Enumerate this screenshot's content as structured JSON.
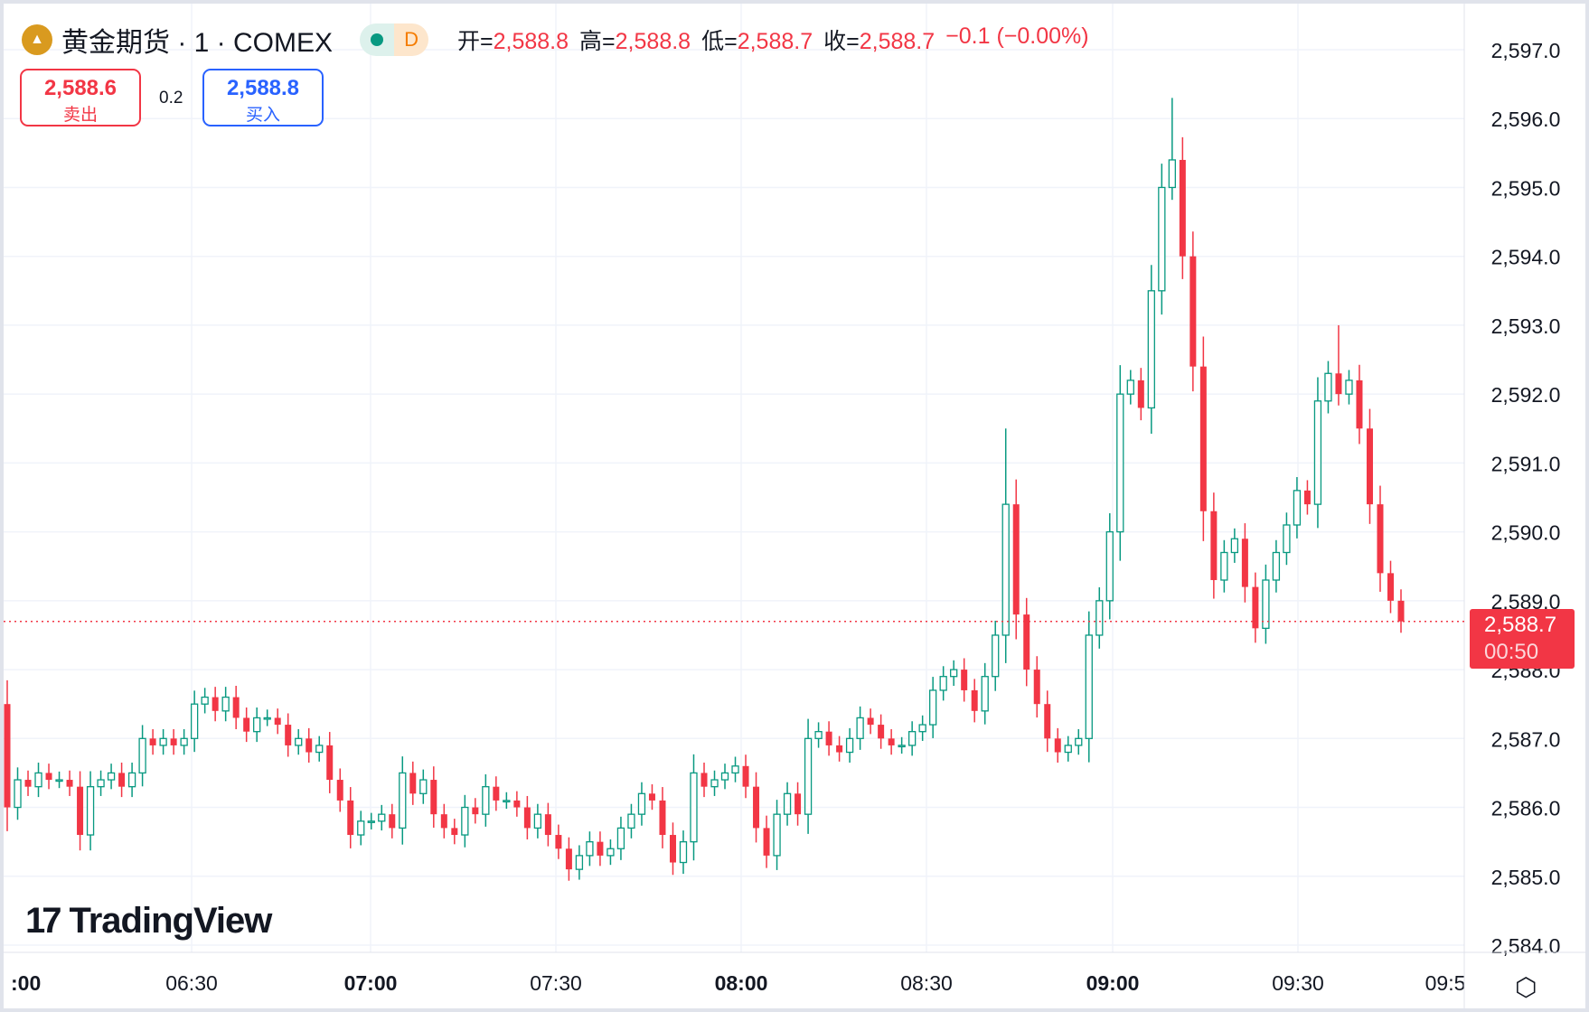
{
  "header": {
    "title": "黄金期货 · 1 · COMEX",
    "logo_icon": "gold-bars-icon",
    "status_dot_color": "#089981",
    "interval_badge": "D",
    "ohlc": [
      {
        "label": "开=",
        "value": "2,588.8"
      },
      {
        "label": "高=",
        "value": "2,588.8"
      },
      {
        "label": "低=",
        "value": "2,588.7"
      },
      {
        "label": "收=",
        "value": "2,588.7"
      }
    ],
    "change": "−0.1 (−0.00%)"
  },
  "trade": {
    "sell_price": "2,588.6",
    "sell_label": "卖出",
    "spread": "0.2",
    "buy_price": "2,588.8",
    "buy_label": "买入"
  },
  "last_price": {
    "value": "2,588.7",
    "countdown": "00:50"
  },
  "branding": "TradingView",
  "colors": {
    "up": "#089981",
    "down": "#f23645",
    "buy": "#2962ff"
  },
  "chart_data": {
    "type": "candlestick",
    "price_ticks": [
      "2,597.0",
      "2,596.0",
      "2,595.0",
      "2,594.0",
      "2,593.0",
      "2,592.0",
      "2,591.0",
      "2,590.0",
      "2,589.0",
      "2,588.0",
      "2,587.0",
      "2,586.0",
      "2,585.0",
      "2,584.0"
    ],
    "ylim": [
      2584.0,
      2597.0
    ],
    "time_ticks": [
      {
        "label": ":00",
        "bold": true
      },
      {
        "label": "06:30",
        "bold": false
      },
      {
        "label": "07:00",
        "bold": true
      },
      {
        "label": "07:30",
        "bold": false
      },
      {
        "label": "08:00",
        "bold": true
      },
      {
        "label": "08:30",
        "bold": false
      },
      {
        "label": "09:00",
        "bold": true
      },
      {
        "label": "09:30",
        "bold": false
      },
      {
        "label": "09:5",
        "bold": false
      }
    ],
    "first_open": 2587.5,
    "closes": [
      2586.0,
      2586.4,
      2586.3,
      2586.5,
      2586.4,
      2586.4,
      2586.3,
      2585.6,
      2586.3,
      2586.4,
      2586.5,
      2586.3,
      2586.5,
      2587.0,
      2586.9,
      2587.0,
      2586.9,
      2587.0,
      2587.5,
      2587.6,
      2587.4,
      2587.6,
      2587.3,
      2587.1,
      2587.3,
      2587.3,
      2587.2,
      2586.9,
      2587.0,
      2586.8,
      2586.9,
      2586.4,
      2586.1,
      2585.6,
      2585.8,
      2585.8,
      2585.9,
      2585.7,
      2586.5,
      2586.2,
      2586.4,
      2585.9,
      2585.7,
      2585.6,
      2586.0,
      2585.9,
      2586.3,
      2586.1,
      2586.1,
      2586.0,
      2585.7,
      2585.9,
      2585.6,
      2585.4,
      2585.1,
      2585.3,
      2585.5,
      2585.3,
      2585.4,
      2585.7,
      2585.9,
      2586.2,
      2586.1,
      2585.6,
      2585.2,
      2585.5,
      2586.5,
      2586.3,
      2586.4,
      2586.5,
      2586.6,
      2586.3,
      2585.7,
      2585.3,
      2585.9,
      2586.2,
      2585.9,
      2587.0,
      2587.1,
      2586.9,
      2586.8,
      2587.0,
      2587.3,
      2587.2,
      2587.0,
      2586.9,
      2586.9,
      2587.1,
      2587.2,
      2587.7,
      2587.9,
      2588.0,
      2587.7,
      2587.4,
      2587.9,
      2588.5,
      2590.4,
      2588.8,
      2588.0,
      2587.5,
      2587.0,
      2586.8,
      2586.9,
      2587.0,
      2588.5,
      2589.0,
      2590.0,
      2592.0,
      2592.2,
      2591.8,
      2593.5,
      2595.0,
      2595.4,
      2594.0,
      2592.4,
      2590.3,
      2589.3,
      2589.7,
      2589.9,
      2589.2,
      2588.6,
      2589.3,
      2589.7,
      2590.1,
      2590.6,
      2590.4,
      2591.9,
      2592.3,
      2592.0,
      2592.2,
      2591.5,
      2590.4,
      2589.4,
      2589.0,
      2588.7
    ],
    "wick_highs": {
      "96": 2591.5,
      "112": 2596.3,
      "128": 2593.0
    },
    "last_price": 2588.7,
    "grid": true
  }
}
